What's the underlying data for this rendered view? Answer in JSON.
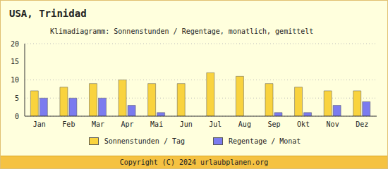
{
  "chart_data": {
    "type": "bar",
    "title": "USA, Trinidad",
    "subtitle": "Klimadiagramm: Sonnenstunden / Regentage, monatlich, gemittelt",
    "categories": [
      "Jan",
      "Feb",
      "Mar",
      "Apr",
      "Mai",
      "Jun",
      "Jul",
      "Aug",
      "Sep",
      "Okt",
      "Nov",
      "Dez"
    ],
    "series": [
      {
        "name": "Sonnenstunden / Tag",
        "color": "#f9d33e",
        "values": [
          7,
          8,
          9,
          10,
          9,
          9,
          12,
          11,
          9,
          8,
          7,
          7
        ]
      },
      {
        "name": "Regentage / Monat",
        "color": "#7b7bef",
        "values": [
          5,
          5,
          5,
          3,
          1,
          0,
          0,
          0,
          1,
          1,
          3,
          4
        ]
      }
    ],
    "ylim": [
      0,
      20
    ],
    "yticks": [
      0,
      5,
      10,
      15,
      20
    ],
    "grid": true,
    "legend": "bottom",
    "footer": "Copyright (C) 2024 urlaubplanen.org"
  }
}
